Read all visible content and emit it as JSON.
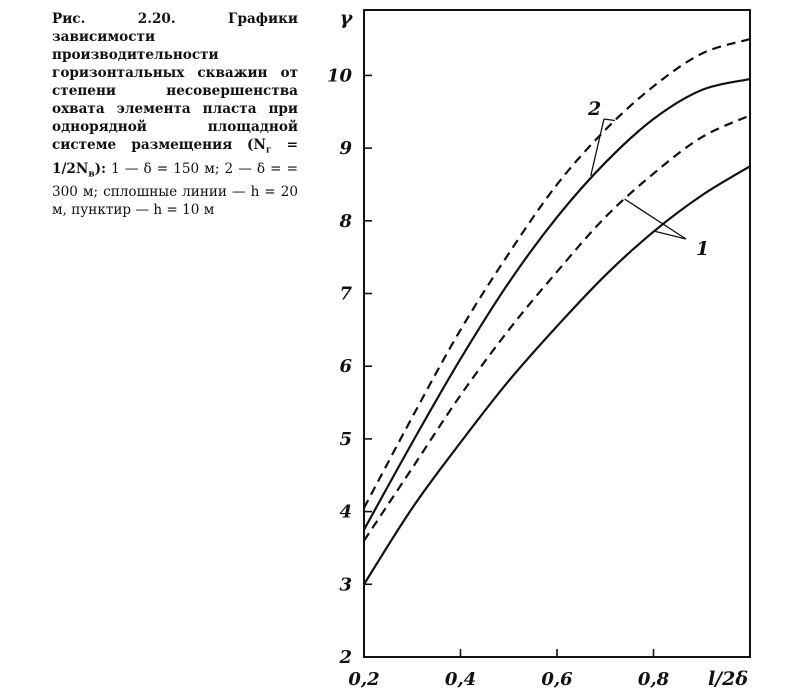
{
  "caption": {
    "title_bold": "Рис. 2.20. Графики зависимости производительности горизонтальных скважин от степени несовершенства охвата элемента пласта при однорядной площадной системе размещения",
    "formula_open": "(N",
    "formula_sub1": "г",
    "formula_mid": " = 1/2N",
    "formula_sub2": "в",
    "formula_close": "):",
    "legend_text": "1 — δ = 150 м; 2 — δ = = 300 м; сплошные линии — h = 20 м, пунктир — h = 10 м"
  },
  "chart_data": {
    "type": "line",
    "xlabel": "l/2δ",
    "ylabel": "γ",
    "xlim": [
      0.2,
      1.0
    ],
    "ylim": [
      2,
      10.9
    ],
    "x_ticks": [
      "0,2",
      "0,4",
      "0,6",
      "0,8"
    ],
    "y_ticks": [
      "2",
      "3",
      "4",
      "5",
      "6",
      "7",
      "8",
      "9",
      "10"
    ],
    "grid": false,
    "series": [
      {
        "name": "2",
        "style": "dashed",
        "x": [
          0.2,
          0.3,
          0.4,
          0.5,
          0.6,
          0.7,
          0.8,
          0.9,
          1.0
        ],
        "y": [
          4.05,
          5.3,
          6.5,
          7.55,
          8.5,
          9.25,
          9.85,
          10.3,
          10.5
        ]
      },
      {
        "name": "2",
        "style": "solid",
        "x": [
          0.2,
          0.3,
          0.4,
          0.5,
          0.6,
          0.7,
          0.8,
          0.9,
          1.0
        ],
        "y": [
          3.75,
          4.95,
          6.1,
          7.15,
          8.05,
          8.8,
          9.4,
          9.8,
          9.95
        ]
      },
      {
        "name": "1",
        "style": "dashed",
        "x": [
          0.2,
          0.3,
          0.4,
          0.5,
          0.6,
          0.7,
          0.8,
          0.9,
          1.0
        ],
        "y": [
          3.6,
          4.6,
          5.6,
          6.5,
          7.3,
          8.05,
          8.65,
          9.15,
          9.45
        ]
      },
      {
        "name": "1",
        "style": "solid",
        "x": [
          0.2,
          0.3,
          0.4,
          0.5,
          0.6,
          0.7,
          0.8,
          0.9,
          1.0
        ],
        "y": [
          3.0,
          4.05,
          4.95,
          5.8,
          6.55,
          7.25,
          7.85,
          8.35,
          8.75
        ]
      }
    ],
    "annotations": [
      {
        "text": "2",
        "points_to": [
          "2 dashed",
          "2 solid"
        ]
      },
      {
        "text": "1",
        "points_to": [
          "1 dashed",
          "1 solid"
        ]
      }
    ],
    "colors": {
      "line": "#111111",
      "axis": "#111111"
    }
  }
}
